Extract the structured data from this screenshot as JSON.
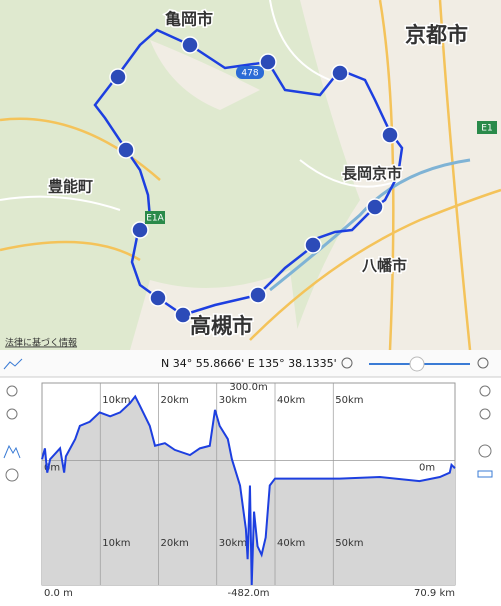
{
  "map": {
    "places": [
      "亀岡市",
      "京都市",
      "長岡京市",
      "豊能町",
      "八幡市",
      "高槻市"
    ],
    "road_badges": [
      "478",
      "E1A",
      "E1"
    ],
    "legal": "法律に基づく情報"
  },
  "toolbar": {
    "coordinates": "N 34° 55.8666' E 135° 38.1335'"
  },
  "chart_data": {
    "type": "area",
    "color": "#1d3fe0",
    "x": [
      0,
      0.5,
      0.9,
      1.4,
      3.1,
      3.8,
      4.1,
      5.7,
      6.5,
      8.2,
      9.9,
      11.7,
      13.4,
      15.1,
      16.0,
      16.8,
      18.5,
      19.4,
      21.1,
      22.8,
      25.4,
      27.1,
      28.8,
      29.7,
      30.5,
      31.9,
      32.6,
      34.0,
      35.0,
      35.3,
      35.7,
      36.0,
      36.4,
      37.0,
      37.7,
      38.4,
      39.1,
      40.0,
      44.3,
      51.1,
      58.0,
      64.8,
      68.3,
      70.0,
      70.3,
      70.9
    ],
    "values": [
      5,
      47,
      -47,
      5,
      47,
      -47,
      16,
      83,
      134,
      150,
      186,
      171,
      186,
      222,
      248,
      212,
      134,
      57,
      67,
      41,
      21,
      47,
      57,
      196,
      134,
      83,
      5,
      -97,
      -265,
      -382,
      -97,
      -482,
      -198,
      -332,
      -365,
      -298,
      -97,
      -70,
      -70,
      -70,
      -64,
      -80,
      -64,
      -47,
      -17,
      -30
    ],
    "xlim": [
      0,
      70.9
    ],
    "ylim": [
      -482,
      300
    ],
    "xticks": [
      {
        "value": 0,
        "label": "0.0 m"
      },
      {
        "value": 10,
        "label": "10km"
      },
      {
        "value": 20,
        "label": "20km"
      },
      {
        "value": 30,
        "label": "30km"
      },
      {
        "value": 40,
        "label": "40km"
      },
      {
        "value": 50,
        "label": "50km"
      },
      {
        "value": 70.9,
        "label": "70.9 km"
      }
    ],
    "yticks": [
      {
        "value": 300,
        "label": "300.0m"
      },
      {
        "value": 0,
        "label": "0m"
      },
      {
        "value": -482,
        "label": "-482.0m"
      }
    ],
    "grid": true
  }
}
